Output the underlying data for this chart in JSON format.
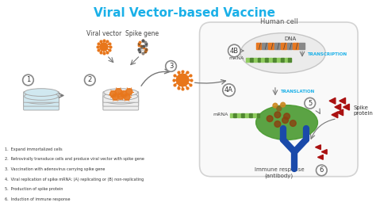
{
  "title": "Viral Vector-based Vaccine",
  "title_color": "#1ab0e8",
  "title_fontsize": 11,
  "background_color": "#ffffff",
  "legend_items": [
    "Expand immortalized cells",
    "Retrovirally transduce cells and produce viral vector with spike gene",
    "Vaccination with adenovirus carrying spike gene",
    "Viral replication of spike mRNA: (A) replicating or (B) non-replicating",
    "Production of spike protein",
    "Induction of immune response"
  ],
  "labels": {
    "viral_vector": "Viral vector",
    "spike_gene": "Spike gene",
    "human_cell": "Human cell",
    "dna": "DNA",
    "mrna": "mRNA",
    "transcription": "TRANSCRIPTION",
    "translation": "TRANSLATION",
    "spike_protein": "Spike\nprotein",
    "immune_response": "Immune response\n(antibody)"
  },
  "virus_color": "#e8761a",
  "virus_color2": "#e87820",
  "antibody_color": "#1a4aaa",
  "spike_protein_color": "#aa1111",
  "green_cell_color": "#4a9a30",
  "arrow_color": "#777777",
  "circle_edge": "#888888",
  "dna_colors": [
    "#e87820",
    "#888888",
    "#e87820",
    "#888888",
    "#e87820",
    "#888888",
    "#e87820",
    "#888888"
  ],
  "mrna_colors": [
    "#90cc60",
    "#508830",
    "#90cc60",
    "#508830",
    "#90cc60",
    "#508830",
    "#90cc60",
    "#508830",
    "#90cc60",
    "#508830",
    "#90cc60",
    "#508830"
  ],
  "cell_bg": "#f0f0f0",
  "cell_edge": "#cccccc"
}
